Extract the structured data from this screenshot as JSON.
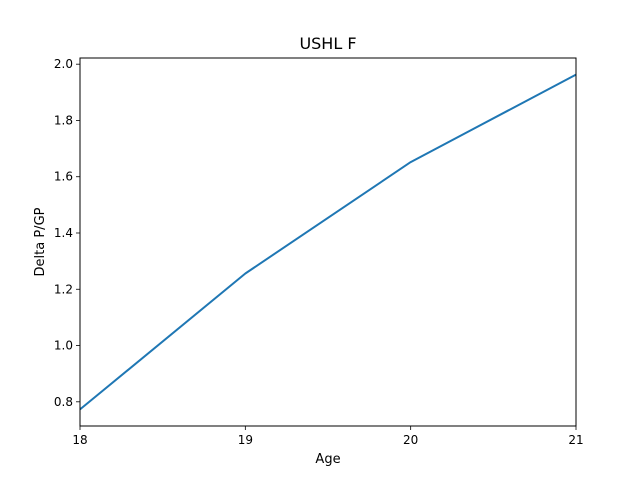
{
  "chart_data": {
    "type": "line",
    "title": "USHL F",
    "xlabel": "Age",
    "ylabel": "Delta P/GP",
    "x": [
      18,
      19,
      20,
      21
    ],
    "xlim": [
      18,
      21
    ],
    "ylim": [
      0.714,
      2.022
    ],
    "xticks": [
      18,
      19,
      20,
      21
    ],
    "xtick_labels": [
      "18",
      "19",
      "20",
      "21"
    ],
    "yticks": [
      0.8,
      1.0,
      1.2,
      1.4,
      1.6,
      1.8,
      2.0
    ],
    "ytick_labels": [
      "0.8",
      "1.0",
      "1.2",
      "1.4",
      "1.6",
      "1.8",
      "2.0"
    ],
    "grid": false,
    "legend": "none",
    "series": [
      {
        "values": [
          0.773,
          1.256,
          1.652,
          1.963
        ],
        "color": "#1f77b4"
      }
    ]
  }
}
